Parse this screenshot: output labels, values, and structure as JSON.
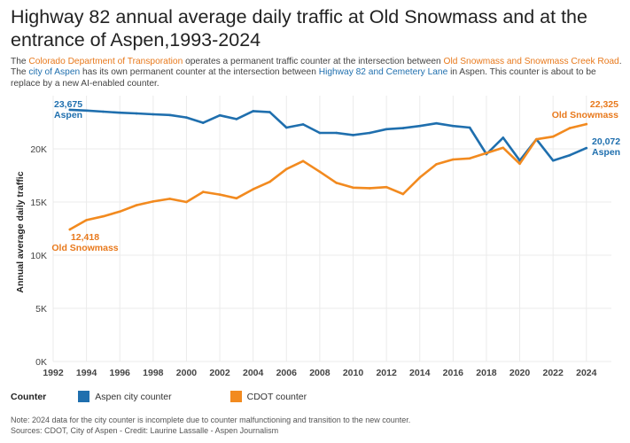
{
  "title": "Highway 82 annual average daily traffic at Old Snowmass and at the entrance of Aspen,1993-2024",
  "subtitle": {
    "p1": "The ",
    "link_cdot": "Colorado Department of Transporation",
    "p2": " operates a permanent traffic counter at the intersection between ",
    "link_snowmass": "Old Snowmass and Snowmass Creek Road",
    "p3": ". The ",
    "link_aspen": "city of Aspen",
    "p4": " has its own permanent counter at the intersection between ",
    "link_hwy": "Highway 82 and Cemetery Lane",
    "p5": " in Aspen. This counter is about to be replace by a new AI-enabled counter."
  },
  "colors": {
    "aspen": "#1f6fae",
    "cdot": "#f28a1f",
    "grid": "#ebebeb",
    "link_orange": "#e8791c",
    "link_blue": "#1f6fae"
  },
  "chart_data": {
    "type": "line",
    "ylabel": "Annual average daily traffic",
    "xlabel": "",
    "xlim": [
      1992,
      2025.5
    ],
    "ylim": [
      0,
      25000
    ],
    "x_ticks": [
      1992,
      1994,
      1996,
      1998,
      2000,
      2002,
      2004,
      2006,
      2008,
      2010,
      2012,
      2014,
      2016,
      2018,
      2020,
      2022,
      2024
    ],
    "y_ticks": [
      0,
      5000,
      10000,
      15000,
      20000
    ],
    "y_tick_labels": [
      "0K",
      "5K",
      "10K",
      "15K",
      "20K"
    ],
    "series": [
      {
        "name": "Aspen city counter",
        "key": "aspen",
        "x": [
          1993,
          1994,
          1995,
          1996,
          1997,
          1998,
          1999,
          2000,
          2001,
          2002,
          2003,
          2004,
          2005,
          2006,
          2007,
          2008,
          2009,
          2010,
          2011,
          2012,
          2013,
          2014,
          2015,
          2016,
          2017,
          2018,
          2019,
          2020,
          2021,
          2022,
          2023,
          2024
        ],
        "values": [
          23675,
          23600,
          23500,
          23400,
          23330,
          23250,
          23180,
          22950,
          22450,
          23150,
          22800,
          23550,
          23450,
          22000,
          22300,
          21500,
          21500,
          21300,
          21500,
          21850,
          21950,
          22150,
          22400,
          22150,
          22000,
          19500,
          21050,
          18900,
          20900,
          18900,
          19400,
          20072
        ]
      },
      {
        "name": "CDOT counter",
        "key": "cdot",
        "x": [
          1993,
          1994,
          1995,
          1996,
          1997,
          1998,
          1999,
          2000,
          2001,
          2002,
          2003,
          2004,
          2005,
          2006,
          2007,
          2008,
          2009,
          2010,
          2011,
          2012,
          2013,
          2014,
          2015,
          2016,
          2017,
          2018,
          2019,
          2020,
          2021,
          2022,
          2023,
          2024
        ],
        "values": [
          12418,
          13300,
          13650,
          14100,
          14700,
          15050,
          15300,
          15000,
          15950,
          15700,
          15350,
          16200,
          16900,
          18100,
          18850,
          17850,
          16800,
          16350,
          16300,
          16400,
          15750,
          17300,
          18550,
          19000,
          19100,
          19600,
          20100,
          18600,
          20900,
          21150,
          21950,
          22325
        ]
      }
    ],
    "annotations": [
      {
        "key": "aspen_start",
        "value": "23,675",
        "label": "Aspen"
      },
      {
        "key": "aspen_end",
        "value": "20,072",
        "label": "Aspen"
      },
      {
        "key": "cdot_start",
        "value": "12,418",
        "label": "Old Snowmass"
      },
      {
        "key": "cdot_end",
        "value": "22,325",
        "label": "Old Snowmass"
      }
    ]
  },
  "legend": {
    "title": "Counter",
    "items": [
      {
        "label": "Aspen city counter",
        "key": "aspen"
      },
      {
        "label": "CDOT counter",
        "key": "cdot"
      }
    ]
  },
  "notes": {
    "line1": "Note: 2024 data for the city counter is incomplete due to counter malfunctioning and transition to the new counter.",
    "line2": "Sources: CDOT, City of Aspen - Credit: Laurine Lassalle - Aspen Journalism"
  }
}
